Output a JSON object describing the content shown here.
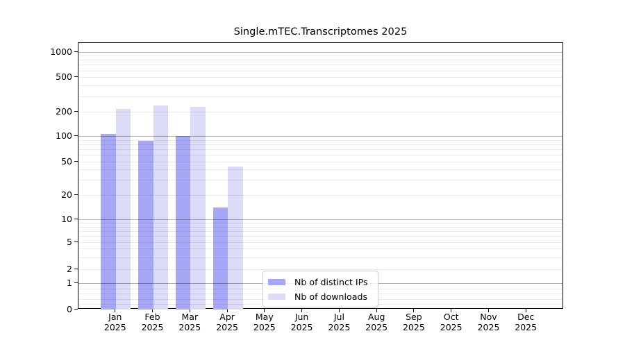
{
  "chart_data": {
    "type": "bar",
    "title": "Single.mTEC.Transcriptomes 2025",
    "categories": [
      "Jan",
      "Feb",
      "Mar",
      "Apr",
      "May",
      "Jun",
      "Jul",
      "Aug",
      "Sep",
      "Oct",
      "Nov",
      "Dec"
    ],
    "x_year_label": "2025",
    "series": [
      {
        "name": "Nb of distinct IPs",
        "color": "#a7a7f7",
        "values": [
          108,
          88,
          102,
          14,
          0,
          0,
          0,
          0,
          0,
          0,
          0,
          0
        ]
      },
      {
        "name": "Nb of downloads",
        "color": "#dcdcf9",
        "values": [
          215,
          238,
          227,
          44,
          0,
          0,
          0,
          0,
          0,
          0,
          0,
          0
        ]
      }
    ],
    "yticks": [
      0,
      1,
      2,
      5,
      10,
      20,
      50,
      100,
      200,
      500,
      1000
    ],
    "scale": "symlog",
    "ylim": [
      0,
      1150
    ],
    "grid": {
      "major_lines": [
        1,
        10,
        100,
        1000
      ],
      "minor_lines": [
        0.2,
        0.4,
        0.6,
        0.8,
        2,
        3,
        4,
        5,
        6,
        7,
        8,
        9,
        20,
        30,
        40,
        50,
        60,
        70,
        80,
        90,
        200,
        300,
        400,
        500,
        600,
        700,
        800,
        900
      ]
    },
    "legend_position": "lower center inside plot",
    "axis_color": "#000000",
    "background_color": "#ffffff"
  }
}
